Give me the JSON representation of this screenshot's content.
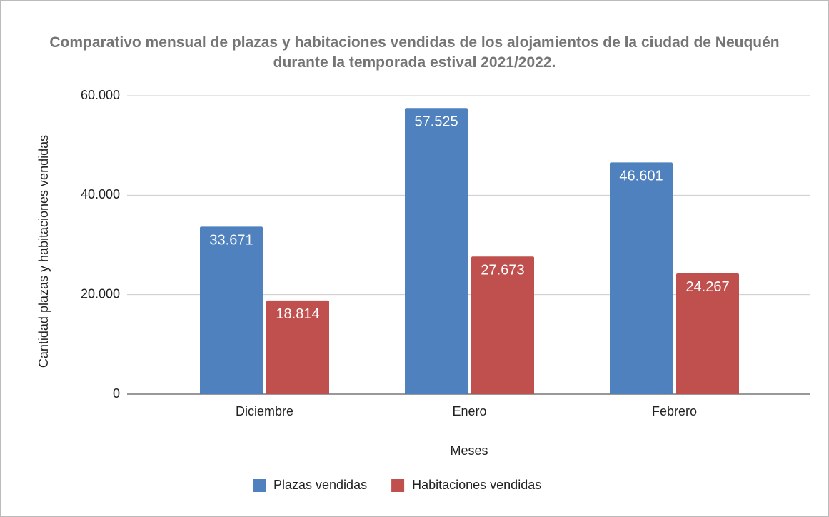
{
  "chart_data": {
    "type": "bar",
    "title": "Comparativo mensual de plazas y habitaciones vendidas de los alojamientos de la ciudad de Neuquén durante la temporada estival 2021/2022.",
    "x_label": "Meses",
    "y_label": "Cantidad plazas y habitaciones vendidas",
    "categories": [
      "Diciembre",
      "Enero",
      "Febrero"
    ],
    "series": [
      {
        "name": "Plazas vendidas",
        "color": "#4e81bd",
        "values": [
          33671,
          57525,
          46601
        ],
        "value_labels": [
          "33.671",
          "57.525",
          "46.601"
        ]
      },
      {
        "name": "Habitaciones vendidas",
        "color": "#c0504d",
        "values": [
          18814,
          27673,
          24267
        ],
        "value_labels": [
          "18.814",
          "27.673",
          "24.267"
        ]
      }
    ],
    "ylim": [
      0,
      60000
    ],
    "yticks": [
      0,
      {
        "value": 20000,
        "label": "20.000"
      },
      {
        "value": 40000,
        "label": "40.000"
      },
      {
        "value": 60000,
        "label": "60.000"
      }
    ],
    "grid": true,
    "legend": "bottom"
  }
}
